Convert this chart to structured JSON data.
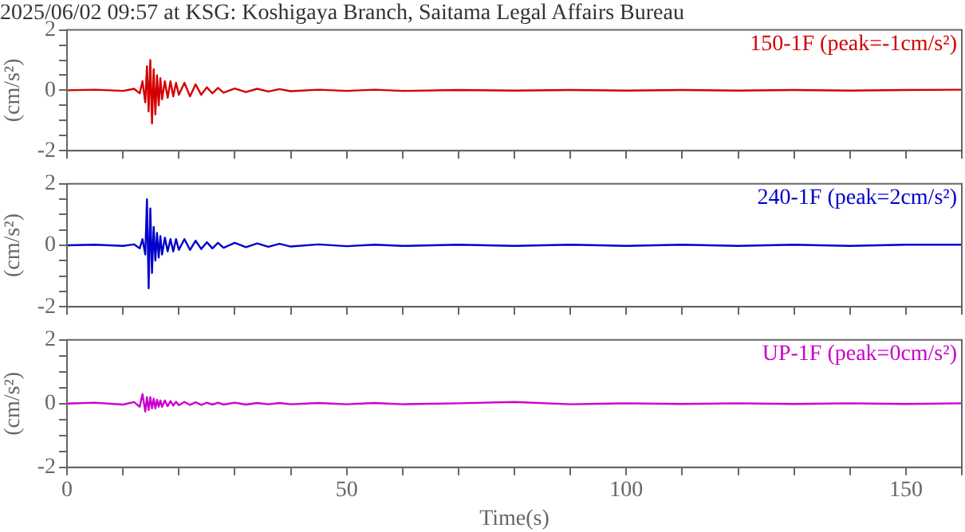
{
  "chart_data": [
    {
      "type": "line",
      "title": "2025/06/02 09:57 at KSG: Koshigaya Branch, Saitama Legal Affairs Bureau",
      "ylabel": "(cm/s²)",
      "tick_labels": "y",
      "xlim": [
        0,
        160
      ],
      "xticks": [
        0,
        {
          "value": 10,
          "label": null
        },
        {
          "value": 20,
          "label": null
        },
        {
          "value": 30,
          "label": null
        },
        {
          "value": 40,
          "label": null
        },
        50,
        {
          "value": 60,
          "label": null
        },
        {
          "value": 70,
          "label": null
        },
        {
          "value": 80,
          "label": null
        },
        {
          "value": 90,
          "label": null
        },
        100,
        {
          "value": 110,
          "label": null
        },
        {
          "value": 120,
          "label": null
        },
        {
          "value": 130,
          "label": null
        },
        {
          "value": 140,
          "label": null
        },
        150,
        {
          "value": 160,
          "label": null
        }
      ],
      "ylim": [
        -2,
        2
      ],
      "yticks": [
        -2,
        {
          "value": -1.5,
          "label": null
        },
        {
          "value": -1,
          "label": null
        },
        {
          "value": -0.5,
          "label": null
        },
        0,
        {
          "value": 0.5,
          "label": null
        },
        {
          "value": 1,
          "label": null
        },
        {
          "value": 1.5,
          "label": null
        },
        2
      ],
      "x": [
        0,
        5,
        10,
        12,
        13,
        13.5,
        14,
        14.3,
        14.6,
        14.9,
        15.2,
        15.5,
        15.8,
        16.1,
        16.4,
        16.7,
        17,
        17.5,
        18,
        18.5,
        19,
        19.5,
        20,
        21,
        22,
        23,
        24,
        25,
        26,
        27,
        28,
        30,
        32,
        34,
        36,
        38,
        40,
        45,
        50,
        55,
        60,
        70,
        80,
        90,
        100,
        110,
        120,
        130,
        140,
        150,
        160
      ],
      "series": [
        {
          "name": "150-1F (peak=-1cm/s²)",
          "color": "#d40000",
          "values": [
            0,
            0.02,
            -0.02,
            0.05,
            -0.1,
            0.3,
            -0.4,
            0.8,
            -0.7,
            1.0,
            -1.1,
            0.7,
            -0.8,
            0.5,
            -0.5,
            0.4,
            -0.3,
            0.3,
            -0.25,
            0.3,
            -0.2,
            0.25,
            -0.15,
            0.25,
            -0.2,
            0.2,
            -0.15,
            0.1,
            -0.1,
            0.08,
            -0.08,
            0.06,
            -0.06,
            0.05,
            -0.04,
            0.04,
            -0.03,
            0.02,
            -0.02,
            0.02,
            -0.02,
            0.01,
            -0.01,
            0.01,
            -0.01,
            0.01,
            -0.01,
            0.01,
            -0.01,
            0.01,
            0.02
          ]
        }
      ]
    },
    {
      "type": "line",
      "ylabel": "(cm/s²)",
      "tick_labels": "y",
      "xlim": [
        0,
        160
      ],
      "xticks": [
        0,
        {
          "value": 10,
          "label": null
        },
        {
          "value": 20,
          "label": null
        },
        {
          "value": 30,
          "label": null
        },
        {
          "value": 40,
          "label": null
        },
        50,
        {
          "value": 60,
          "label": null
        },
        {
          "value": 70,
          "label": null
        },
        {
          "value": 80,
          "label": null
        },
        {
          "value": 90,
          "label": null
        },
        100,
        {
          "value": 110,
          "label": null
        },
        {
          "value": 120,
          "label": null
        },
        {
          "value": 130,
          "label": null
        },
        {
          "value": 140,
          "label": null
        },
        150,
        {
          "value": 160,
          "label": null
        }
      ],
      "ylim": [
        -2,
        2
      ],
      "yticks": [
        -2,
        {
          "value": -1.5,
          "label": null
        },
        {
          "value": -1,
          "label": null
        },
        {
          "value": -0.5,
          "label": null
        },
        0,
        {
          "value": 0.5,
          "label": null
        },
        {
          "value": 1,
          "label": null
        },
        {
          "value": 1.5,
          "label": null
        },
        2
      ],
      "x": [
        0,
        5,
        10,
        12,
        13,
        13.5,
        14,
        14.3,
        14.6,
        14.9,
        15.2,
        15.5,
        15.8,
        16.1,
        16.4,
        16.7,
        17,
        17.5,
        18,
        18.5,
        19,
        19.5,
        20,
        21,
        22,
        23,
        24,
        25,
        26,
        27,
        28,
        30,
        32,
        34,
        36,
        38,
        40,
        45,
        50,
        55,
        60,
        70,
        80,
        90,
        100,
        110,
        120,
        130,
        140,
        150,
        160
      ],
      "series": [
        {
          "name": "240-1F (peak=2cm/s²)",
          "color": "#0000cc",
          "values": [
            0,
            0.02,
            -0.02,
            0.03,
            -0.1,
            0.2,
            -0.3,
            1.5,
            -1.4,
            1.2,
            -0.9,
            0.6,
            -0.5,
            0.4,
            -0.4,
            0.3,
            -0.3,
            0.25,
            -0.2,
            0.2,
            -0.2,
            0.2,
            -0.15,
            0.2,
            -0.15,
            0.15,
            -0.12,
            0.1,
            -0.1,
            0.08,
            -0.08,
            0.08,
            -0.06,
            0.06,
            -0.05,
            0.05,
            -0.04,
            0.03,
            -0.03,
            0.02,
            -0.02,
            0.02,
            -0.02,
            0.02,
            -0.02,
            0.02,
            -0.02,
            0.02,
            -0.02,
            0.02,
            0.02
          ]
        }
      ]
    },
    {
      "type": "line",
      "ylabel": "(cm/s²)",
      "xlabel": "Time(s)",
      "xlim": [
        0,
        160
      ],
      "xticks": [
        0,
        {
          "value": 10,
          "label": null
        },
        {
          "value": 20,
          "label": null
        },
        {
          "value": 30,
          "label": null
        },
        {
          "value": 40,
          "label": null
        },
        50,
        {
          "value": 60,
          "label": null
        },
        {
          "value": 70,
          "label": null
        },
        {
          "value": 80,
          "label": null
        },
        {
          "value": 90,
          "label": null
        },
        100,
        {
          "value": 110,
          "label": null
        },
        {
          "value": 120,
          "label": null
        },
        {
          "value": 130,
          "label": null
        },
        {
          "value": 140,
          "label": null
        },
        150,
        {
          "value": 160,
          "label": null
        }
      ],
      "ylim": [
        -2,
        2
      ],
      "yticks": [
        -2,
        {
          "value": -1.5,
          "label": null
        },
        {
          "value": -1,
          "label": null
        },
        {
          "value": -0.5,
          "label": null
        },
        0,
        {
          "value": 0.5,
          "label": null
        },
        {
          "value": 1,
          "label": null
        },
        {
          "value": 1.5,
          "label": null
        },
        2
      ],
      "x": [
        0,
        5,
        10,
        12,
        13,
        13.5,
        14,
        14.3,
        14.6,
        14.9,
        15.2,
        15.5,
        15.8,
        16.1,
        16.4,
        16.7,
        17,
        17.5,
        18,
        18.5,
        19,
        19.5,
        20,
        21,
        22,
        23,
        24,
        25,
        26,
        27,
        28,
        30,
        32,
        34,
        36,
        38,
        40,
        45,
        50,
        55,
        60,
        70,
        80,
        90,
        100,
        110,
        120,
        130,
        140,
        150,
        160
      ],
      "series": [
        {
          "name": "UP-1F (peak=0cm/s²)",
          "color": "#cc00cc",
          "values": [
            0,
            0.03,
            -0.03,
            0.05,
            -0.1,
            0.3,
            -0.25,
            0.2,
            -0.2,
            0.2,
            -0.15,
            0.15,
            -0.15,
            0.12,
            -0.1,
            0.1,
            -0.1,
            0.1,
            -0.08,
            0.08,
            -0.06,
            0.06,
            -0.05,
            0.05,
            -0.04,
            0.04,
            -0.04,
            0.03,
            -0.03,
            0.03,
            -0.03,
            0.03,
            -0.03,
            0.02,
            -0.02,
            0.02,
            -0.02,
            0.02,
            -0.02,
            0.02,
            -0.02,
            0.01,
            0.05,
            -0.02,
            0.01,
            -0.01,
            0.01,
            -0.01,
            0.01,
            -0.01,
            0.01
          ]
        }
      ]
    }
  ]
}
